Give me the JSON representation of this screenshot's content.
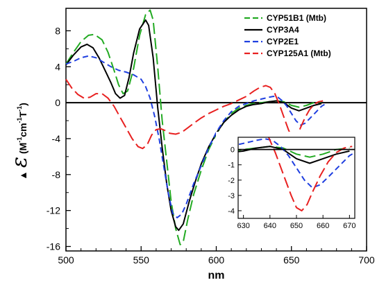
{
  "chart_data": {
    "type": "line",
    "xlabel": "nm",
    "ylabel": {
      "marker": "▲",
      "symbol": "ε",
      "open": "(M",
      "sup1": "-1",
      "mid1": "cm",
      "sup2": "-1",
      "mid2": "T",
      "sup3": "-1",
      "close": ")"
    },
    "xlim": [
      500,
      700
    ],
    "ylim": [
      -16.5,
      10.5
    ],
    "xticks": [
      "500",
      "550",
      "600",
      "650",
      "700"
    ],
    "yticks": [
      "8",
      "4",
      "0",
      "-4",
      "-8",
      "-12",
      "-16"
    ],
    "legend_position": "top-right",
    "series": [
      {
        "name": "CYP51B1 (Mtb)",
        "color": "#22aa22",
        "dash": "long-dash",
        "points": [
          [
            500,
            4.3
          ],
          [
            505,
            5.6
          ],
          [
            510,
            6.8
          ],
          [
            515,
            7.5
          ],
          [
            519,
            7.6
          ],
          [
            524,
            7.0
          ],
          [
            528,
            5.6
          ],
          [
            532,
            3.6
          ],
          [
            535,
            2.0
          ],
          [
            538,
            1.0
          ],
          [
            541,
            1.3
          ],
          [
            545,
            3.8
          ],
          [
            549,
            7.5
          ],
          [
            553,
            9.8
          ],
          [
            556,
            10.3
          ],
          [
            558,
            9.2
          ],
          [
            561,
            4.0
          ],
          [
            564,
            -2.0
          ],
          [
            567,
            -6.5
          ],
          [
            570,
            -11.0
          ],
          [
            573,
            -14.0
          ],
          [
            576,
            -15.8
          ],
          [
            578,
            -15.5
          ],
          [
            581,
            -13.0
          ],
          [
            585,
            -10.2
          ],
          [
            590,
            -7.5
          ],
          [
            595,
            -5.2
          ],
          [
            600,
            -3.5
          ],
          [
            605,
            -2.2
          ],
          [
            610,
            -1.2
          ],
          [
            615,
            -0.6
          ],
          [
            620,
            -0.3
          ],
          [
            625,
            -0.1
          ],
          [
            630,
            0.0
          ],
          [
            635,
            0.1
          ],
          [
            640,
            0.2
          ],
          [
            645,
            0.1
          ],
          [
            650,
            -0.3
          ],
          [
            655,
            -0.5
          ],
          [
            660,
            -0.3
          ],
          [
            665,
            0.0
          ],
          [
            670,
            0.1
          ]
        ]
      },
      {
        "name": "CYP3A4",
        "color": "#000000",
        "dash": "solid",
        "points": [
          [
            500,
            4.2
          ],
          [
            505,
            5.3
          ],
          [
            510,
            6.2
          ],
          [
            514,
            6.5
          ],
          [
            518,
            6.1
          ],
          [
            522,
            5.0
          ],
          [
            526,
            3.6
          ],
          [
            530,
            2.2
          ],
          [
            533,
            1.0
          ],
          [
            536,
            0.5
          ],
          [
            539,
            0.8
          ],
          [
            542,
            2.8
          ],
          [
            545,
            5.5
          ],
          [
            549,
            8.2
          ],
          [
            553,
            9.2
          ],
          [
            555,
            8.6
          ],
          [
            558,
            5.0
          ],
          [
            561,
            -0.5
          ],
          [
            564,
            -5.0
          ],
          [
            567,
            -9.0
          ],
          [
            570,
            -12.0
          ],
          [
            573,
            -13.8
          ],
          [
            575,
            -14.2
          ],
          [
            578,
            -13.5
          ],
          [
            582,
            -11.0
          ],
          [
            586,
            -8.8
          ],
          [
            590,
            -6.8
          ],
          [
            595,
            -4.9
          ],
          [
            600,
            -3.4
          ],
          [
            605,
            -2.2
          ],
          [
            610,
            -1.4
          ],
          [
            615,
            -0.8
          ],
          [
            620,
            -0.4
          ],
          [
            625,
            -0.2
          ],
          [
            630,
            -0.1
          ],
          [
            635,
            0.1
          ],
          [
            640,
            0.2
          ],
          [
            645,
            0.0
          ],
          [
            650,
            -0.6
          ],
          [
            655,
            -0.9
          ],
          [
            660,
            -0.6
          ],
          [
            665,
            -0.3
          ],
          [
            670,
            -0.1
          ]
        ]
      },
      {
        "name": "CYP2E1",
        "color": "#1f3fe0",
        "dash": "dash",
        "points": [
          [
            500,
            4.3
          ],
          [
            505,
            4.6
          ],
          [
            510,
            5.0
          ],
          [
            515,
            5.2
          ],
          [
            520,
            5.0
          ],
          [
            525,
            4.5
          ],
          [
            530,
            4.0
          ],
          [
            535,
            3.6
          ],
          [
            540,
            3.4
          ],
          [
            545,
            3.1
          ],
          [
            550,
            2.6
          ],
          [
            553,
            1.8
          ],
          [
            556,
            0.5
          ],
          [
            559,
            -1.5
          ],
          [
            562,
            -4.0
          ],
          [
            565,
            -7.0
          ],
          [
            568,
            -10.0
          ],
          [
            571,
            -12.3
          ],
          [
            574,
            -12.8
          ],
          [
            577,
            -12.4
          ],
          [
            580,
            -11.3
          ],
          [
            585,
            -9.0
          ],
          [
            590,
            -7.0
          ],
          [
            595,
            -5.0
          ],
          [
            600,
            -3.3
          ],
          [
            605,
            -2.0
          ],
          [
            610,
            -1.0
          ],
          [
            615,
            -0.4
          ],
          [
            620,
            -0.1
          ],
          [
            625,
            0.2
          ],
          [
            630,
            0.4
          ],
          [
            635,
            0.6
          ],
          [
            638,
            0.7
          ],
          [
            641,
            0.6
          ],
          [
            644,
            0.2
          ],
          [
            647,
            -0.4
          ],
          [
            650,
            -1.2
          ],
          [
            653,
            -2.0
          ],
          [
            656,
            -2.5
          ],
          [
            659,
            -2.3
          ],
          [
            662,
            -1.8
          ],
          [
            666,
            -1.1
          ],
          [
            670,
            -0.4
          ],
          [
            672,
            -0.2
          ]
        ]
      },
      {
        "name": "CYP125A1 (Mtb)",
        "color": "#e82020",
        "dash": "long-dash",
        "points": [
          [
            500,
            2.6
          ],
          [
            504,
            1.6
          ],
          [
            508,
            0.9
          ],
          [
            512,
            0.5
          ],
          [
            516,
            0.6
          ],
          [
            520,
            1.0
          ],
          [
            524,
            1.0
          ],
          [
            528,
            0.5
          ],
          [
            532,
            -0.4
          ],
          [
            536,
            -1.6
          ],
          [
            540,
            -2.8
          ],
          [
            544,
            -4.0
          ],
          [
            548,
            -4.9
          ],
          [
            551,
            -5.1
          ],
          [
            554,
            -4.7
          ],
          [
            557,
            -3.6
          ],
          [
            560,
            -3.0
          ],
          [
            563,
            -2.9
          ],
          [
            566,
            -3.1
          ],
          [
            569,
            -3.4
          ],
          [
            573,
            -3.5
          ],
          [
            577,
            -3.3
          ],
          [
            581,
            -2.8
          ],
          [
            585,
            -2.3
          ],
          [
            590,
            -1.7
          ],
          [
            595,
            -1.2
          ],
          [
            600,
            -0.8
          ],
          [
            605,
            -0.4
          ],
          [
            610,
            -0.1
          ],
          [
            615,
            0.3
          ],
          [
            620,
            0.7
          ],
          [
            625,
            1.3
          ],
          [
            629,
            1.7
          ],
          [
            633,
            1.9
          ],
          [
            636,
            1.7
          ],
          [
            639,
            1.0
          ],
          [
            642,
            -0.2
          ],
          [
            645,
            -1.6
          ],
          [
            648,
            -3.0
          ],
          [
            650,
            -3.8
          ],
          [
            652,
            -4.0
          ],
          [
            654,
            -3.6
          ],
          [
            656,
            -2.8
          ],
          [
            659,
            -1.7
          ],
          [
            662,
            -0.8
          ],
          [
            665,
            -0.2
          ],
          [
            668,
            0.1
          ],
          [
            671,
            0.2
          ]
        ]
      }
    ],
    "inset": {
      "xlim": [
        628,
        672
      ],
      "ylim": [
        -4.5,
        0.8
      ],
      "xticks": [
        "630",
        "640",
        "650",
        "660",
        "670"
      ],
      "yticks": [
        "0",
        "-1",
        "-2",
        "-3",
        "-4"
      ]
    }
  }
}
